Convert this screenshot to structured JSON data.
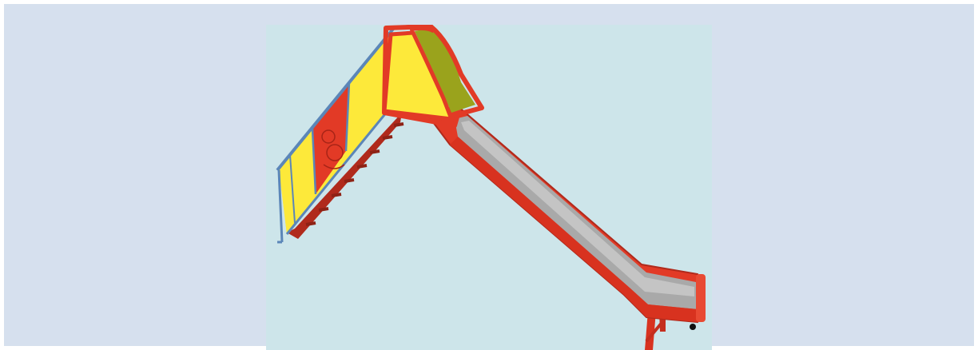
{
  "image": {
    "subject": "slide-illustration",
    "colors": {
      "page_background": "#ffffff",
      "frame_background": "#d6e0ee",
      "photo_background": "#cde5ea",
      "slide_red": "#e23a26",
      "slide_red_dark": "#b02a1c",
      "panel_yellow": "#fde93a",
      "frame_blue": "#5b86b8",
      "chute_gray": "#a9a9a9",
      "hood_olive": "#9aa31c"
    }
  }
}
